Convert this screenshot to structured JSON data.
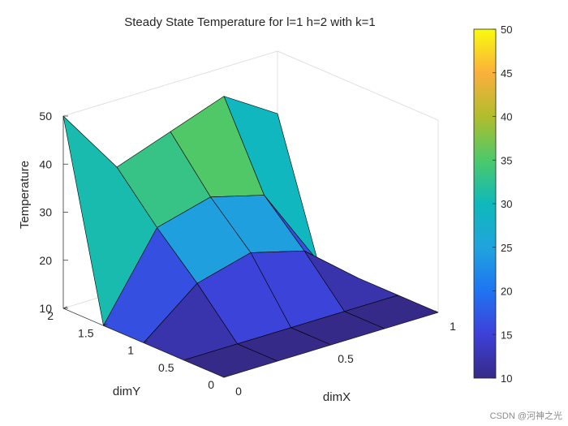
{
  "chart_data": {
    "type": "surface3d",
    "title": "Steady State Temperature for l=1 h=2 with k=1",
    "xlabel": "dimX",
    "ylabel": "dimY",
    "zlabel": "Temperature",
    "x": [
      0,
      0.25,
      0.5,
      0.75,
      1
    ],
    "y": [
      0,
      0.5,
      1,
      1.5,
      2
    ],
    "z": [
      [
        10,
        10,
        10,
        10,
        10
      ],
      [
        10,
        10,
        10,
        10,
        10
      ],
      [
        10,
        19,
        22,
        19,
        10
      ],
      [
        10,
        27,
        30,
        27,
        10
      ],
      [
        50,
        36,
        40,
        44,
        37
      ]
    ],
    "xlim": [
      0,
      1
    ],
    "ylim": [
      0,
      2
    ],
    "zlim": [
      10,
      50
    ],
    "x_ticks": [
      "0",
      "0.5",
      "1"
    ],
    "y_ticks": [
      "0",
      "0.5",
      "1",
      "1.5",
      "2"
    ],
    "z_ticks": [
      "10",
      "20",
      "30",
      "40",
      "50"
    ],
    "colormap": "parula",
    "colorbar": {
      "range": [
        10,
        50
      ],
      "ticks": [
        "10",
        "15",
        "20",
        "25",
        "30",
        "35",
        "40",
        "45",
        "50"
      ]
    }
  },
  "watermark": "CSDN @河神之光"
}
